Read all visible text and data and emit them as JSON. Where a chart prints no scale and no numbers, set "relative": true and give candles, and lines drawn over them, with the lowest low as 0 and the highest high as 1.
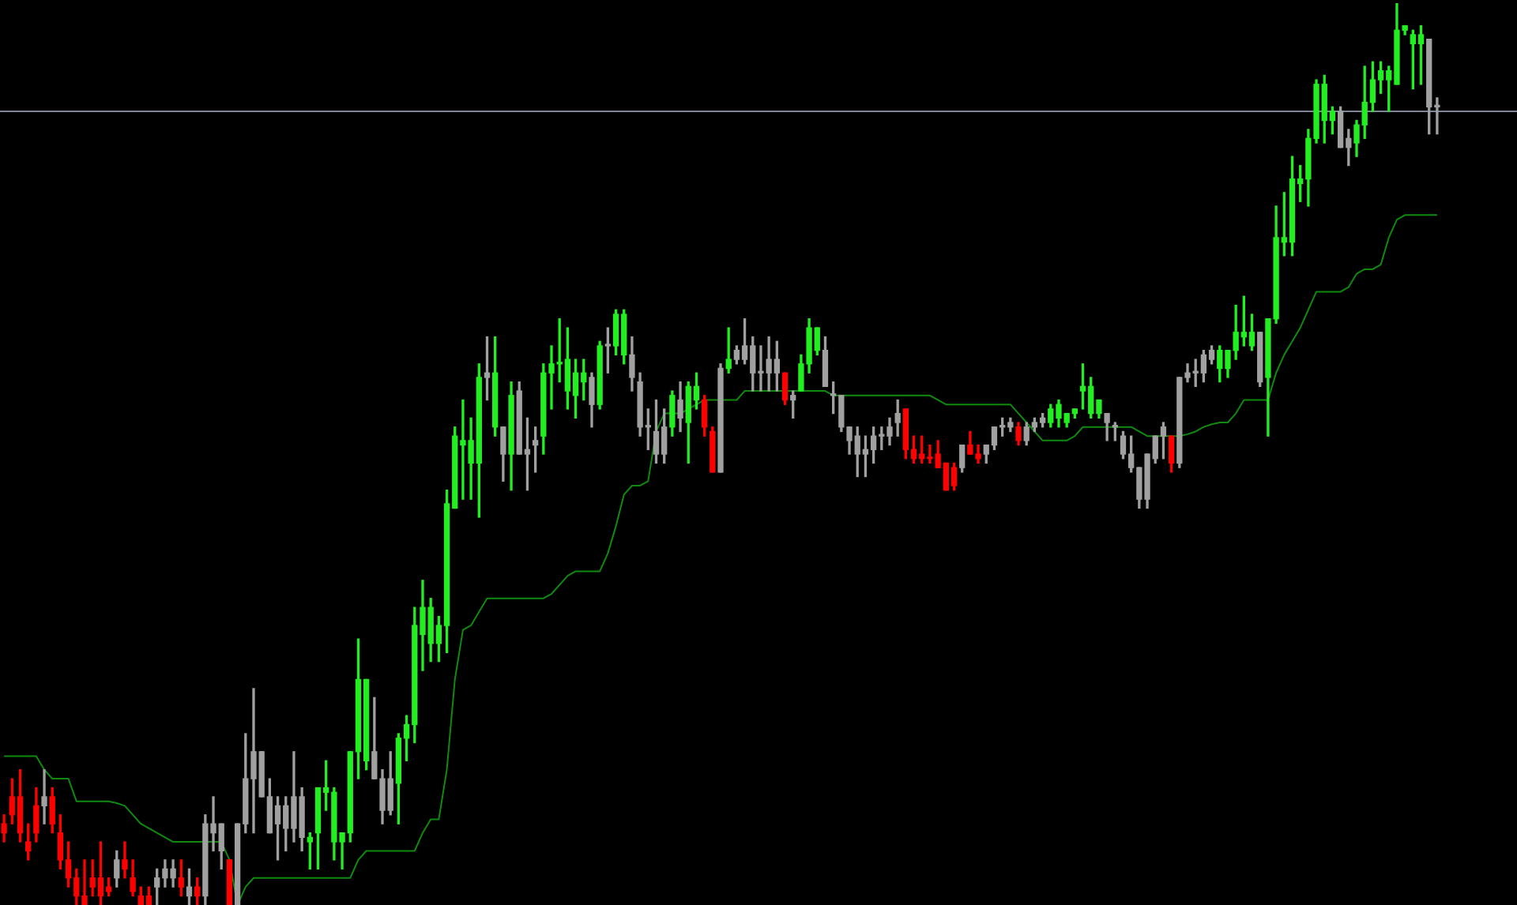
{
  "chart_data": {
    "type": "candlestick",
    "relative": true,
    "categories": [
      null,
      null,
      null,
      null,
      null,
      null,
      null,
      null,
      null,
      null,
      null,
      null,
      null,
      null,
      null,
      null,
      null,
      null,
      null,
      null,
      null,
      null,
      null,
      null,
      null,
      null,
      null,
      null,
      null,
      null,
      null,
      null,
      null,
      null,
      null,
      null,
      null,
      null,
      null,
      null,
      null,
      null,
      null,
      null,
      null,
      null,
      null,
      null,
      null,
      null,
      null,
      null,
      null,
      null,
      null,
      null,
      null,
      null,
      null,
      null,
      null,
      null,
      null,
      null,
      null,
      null,
      null,
      null,
      null,
      null,
      null,
      null,
      null,
      null,
      null,
      null,
      null,
      null,
      null,
      null,
      null,
      null,
      null,
      null,
      null,
      null,
      null,
      null,
      null,
      null,
      null,
      null,
      null,
      null,
      null,
      null,
      null,
      null,
      null,
      null,
      null,
      null,
      null,
      null,
      null,
      null,
      null,
      null,
      null,
      null,
      null,
      null,
      null,
      null,
      null,
      null,
      null,
      null,
      null,
      null,
      null,
      null,
      null,
      null,
      null,
      null,
      null,
      null,
      null,
      null,
      null,
      null,
      null,
      null,
      null,
      null,
      null,
      null,
      null,
      null,
      null,
      null,
      null,
      null,
      null,
      null,
      null,
      null,
      null,
      null,
      null,
      null,
      null,
      null,
      null,
      null,
      null,
      null,
      null,
      null,
      null,
      null,
      null,
      null,
      null,
      null,
      null,
      null,
      null,
      null,
      null,
      null,
      null,
      null,
      null,
      null,
      null,
      null,
      null
    ],
    "ohlc": [
      [
        0.09,
        0.1,
        0.07,
        0.08
      ],
      [
        0.12,
        0.14,
        0.09,
        0.1
      ],
      [
        0.12,
        0.15,
        0.07,
        0.08
      ],
      [
        0.07,
        0.09,
        0.05,
        0.06
      ],
      [
        0.11,
        0.13,
        0.07,
        0.08
      ],
      [
        0.11,
        0.15,
        0.09,
        0.12
      ],
      [
        0.12,
        0.13,
        0.08,
        0.09
      ],
      [
        0.08,
        0.1,
        0.04,
        0.05
      ],
      [
        0.05,
        0.07,
        0.02,
        0.03
      ],
      [
        0.03,
        0.04,
        0,
        0.01
      ],
      [
        0.01,
        0.05,
        0,
        0
      ],
      [
        0.03,
        0.05,
        0.01,
        0.02
      ],
      [
        0.03,
        0.07,
        0,
        0.01
      ],
      [
        0.02,
        0.03,
        0.01,
        0.015
      ],
      [
        0.03,
        0.06,
        0.02,
        0.05
      ],
      [
        0.05,
        0.07,
        0.03,
        0.04
      ],
      [
        0.03,
        0.05,
        0.01,
        0.015
      ],
      [
        0.01,
        0.02,
        0,
        0
      ],
      [
        0.01,
        0.02,
        0,
        0
      ],
      [
        0.02,
        0.04,
        0,
        0.03
      ],
      [
        0.03,
        0.05,
        0.02,
        0.04
      ],
      [
        0.03,
        0.05,
        0.02,
        0.04
      ],
      [
        0.03,
        0.05,
        0.01,
        0.02
      ],
      [
        0.01,
        0.04,
        0,
        0.02
      ],
      [
        0.02,
        0.03,
        0,
        0.01
      ],
      [
        0.01,
        0.1,
        0,
        0.09
      ],
      [
        0.08,
        0.12,
        0.06,
        0.09
      ],
      [
        0.09,
        0.09,
        0.04,
        0.06
      ],
      [
        0.05,
        0.05,
        0,
        0
      ],
      [
        0,
        0.09,
        0,
        0.09
      ],
      [
        0.09,
        0.19,
        0.08,
        0.14
      ],
      [
        0.14,
        0.24,
        0.08,
        0.17
      ],
      [
        0.17,
        0.17,
        0.12,
        0.12
      ],
      [
        0.12,
        0.14,
        0.08,
        0.08
      ],
      [
        0.11,
        0.12,
        0.05,
        0.09
      ],
      [
        0.085,
        0.12,
        0.06,
        0.11
      ],
      [
        0.085,
        0.17,
        0.07,
        0.12
      ],
      [
        0.12,
        0.13,
        0.06,
        0.075
      ],
      [
        0.07,
        0.08,
        0.04,
        0.075
      ],
      [
        0.08,
        0.13,
        0.04,
        0.13
      ],
      [
        0.125,
        0.16,
        0.105,
        0.13
      ],
      [
        0.07,
        0.13,
        0.05,
        0.125
      ],
      [
        0.07,
        0.08,
        0.04,
        0.08
      ],
      [
        0.08,
        0.17,
        0.07,
        0.17
      ],
      [
        0.17,
        0.295,
        0.14,
        0.25
      ],
      [
        0.16,
        0.25,
        0.15,
        0.25
      ],
      [
        0.17,
        0.23,
        0.14,
        0.14
      ],
      [
        0.14,
        0.15,
        0.09,
        0.105
      ],
      [
        0.105,
        0.17,
        0.1,
        0.14
      ],
      [
        0.135,
        0.19,
        0.09,
        0.185
      ],
      [
        0.185,
        0.21,
        0.16,
        0.2
      ],
      [
        0.2,
        0.33,
        0.18,
        0.31
      ],
      [
        0.3,
        0.36,
        0.26,
        0.33
      ],
      [
        0.29,
        0.34,
        0.27,
        0.33
      ],
      [
        0.29,
        0.32,
        0.27,
        0.31
      ],
      [
        0.31,
        0.46,
        0.28,
        0.445
      ],
      [
        0.44,
        0.53,
        0.44,
        0.52
      ],
      [
        0.51,
        0.56,
        0.45,
        0.515
      ],
      [
        0.49,
        0.54,
        0.45,
        0.515
      ],
      [
        0.49,
        0.6,
        0.43,
        0.585
      ],
      [
        0.59,
        0.63,
        0.56,
        0.585
      ],
      [
        0.53,
        0.63,
        0.52,
        0.59
      ],
      [
        0.53,
        0.53,
        0.47,
        0.5
      ],
      [
        0.5,
        0.58,
        0.46,
        0.565
      ],
      [
        0.57,
        0.58,
        0.5,
        0.5
      ],
      [
        0.505,
        0.54,
        0.46,
        0.5
      ],
      [
        0.51,
        0.53,
        0.48,
        0.515
      ],
      [
        0.52,
        0.6,
        0.5,
        0.59
      ],
      [
        0.59,
        0.62,
        0.55,
        0.6
      ],
      [
        0.6,
        0.65,
        0.58,
        0.6
      ],
      [
        0.57,
        0.64,
        0.55,
        0.605
      ],
      [
        0.565,
        0.605,
        0.54,
        0.59
      ],
      [
        0.58,
        0.605,
        0.56,
        0.59
      ],
      [
        0.585,
        0.59,
        0.53,
        0.555
      ],
      [
        0.555,
        0.625,
        0.55,
        0.62
      ],
      [
        0.62,
        0.64,
        0.59,
        0.62
      ],
      [
        0.62,
        0.66,
        0.61,
        0.655
      ],
      [
        0.61,
        0.66,
        0.6,
        0.655
      ],
      [
        0.61,
        0.63,
        0.57,
        0.585
      ],
      [
        0.58,
        0.59,
        0.52,
        0.53
      ],
      [
        0.53,
        0.55,
        0.505,
        0.53
      ],
      [
        0.525,
        0.56,
        0.49,
        0.5
      ],
      [
        0.5,
        0.55,
        0.49,
        0.53
      ],
      [
        0.53,
        0.57,
        0.52,
        0.565
      ],
      [
        0.54,
        0.58,
        0.525,
        0.56
      ],
      [
        0.535,
        0.58,
        0.49,
        0.575
      ],
      [
        0.56,
        0.59,
        0.55,
        0.575
      ],
      [
        0.56,
        0.565,
        0.52,
        0.53
      ],
      [
        0.525,
        0.53,
        0.48,
        0.48
      ],
      [
        0.48,
        0.6,
        0.48,
        0.595
      ],
      [
        0.595,
        0.64,
        0.59,
        0.605
      ],
      [
        0.605,
        0.62,
        0.6,
        0.615
      ],
      [
        0.605,
        0.65,
        0.6,
        0.62
      ],
      [
        0.62,
        0.63,
        0.57,
        0.59
      ],
      [
        0.59,
        0.62,
        0.57,
        0.59
      ],
      [
        0.59,
        0.63,
        0.57,
        0.605
      ],
      [
        0.605,
        0.625,
        0.57,
        0.59
      ],
      [
        0.59,
        0.59,
        0.555,
        0.56
      ],
      [
        0.56,
        0.57,
        0.54,
        0.565
      ],
      [
        0.57,
        0.61,
        0.57,
        0.6
      ],
      [
        0.6,
        0.65,
        0.59,
        0.64
      ],
      [
        0.615,
        0.64,
        0.61,
        0.64
      ],
      [
        0.615,
        0.63,
        0.575,
        0.575
      ],
      [
        0.565,
        0.58,
        0.545,
        0.565
      ],
      [
        0.565,
        0.565,
        0.525,
        0.53
      ],
      [
        0.53,
        0.53,
        0.5,
        0.515
      ],
      [
        0.52,
        0.53,
        0.475,
        0.5
      ],
      [
        0.5,
        0.52,
        0.475,
        0.505
      ],
      [
        0.505,
        0.53,
        0.49,
        0.52
      ],
      [
        0.52,
        0.53,
        0.505,
        0.52
      ],
      [
        0.52,
        0.54,
        0.51,
        0.53
      ],
      [
        0.535,
        0.56,
        0.52,
        0.545
      ],
      [
        0.55,
        0.55,
        0.495,
        0.505
      ],
      [
        0.505,
        0.52,
        0.49,
        0.495
      ],
      [
        0.5,
        0.52,
        0.49,
        0.495
      ],
      [
        0.495,
        0.51,
        0.49,
        0.495
      ],
      [
        0.5,
        0.515,
        0.485,
        0.485
      ],
      [
        0.49,
        0.49,
        0.46,
        0.46
      ],
      [
        0.485,
        0.49,
        0.46,
        0.465
      ],
      [
        0.485,
        0.51,
        0.48,
        0.51
      ],
      [
        0.51,
        0.525,
        0.5,
        0.5
      ],
      [
        0.5,
        0.51,
        0.49,
        0.495
      ],
      [
        0.5,
        0.51,
        0.49,
        0.51
      ],
      [
        0.51,
        0.53,
        0.505,
        0.53
      ],
      [
        0.53,
        0.54,
        0.52,
        0.53
      ],
      [
        0.53,
        0.54,
        0.525,
        0.535
      ],
      [
        0.53,
        0.535,
        0.51,
        0.515
      ],
      [
        0.515,
        0.535,
        0.51,
        0.53
      ],
      [
        0.53,
        0.54,
        0.525,
        0.535
      ],
      [
        0.535,
        0.545,
        0.53,
        0.54
      ],
      [
        0.535,
        0.555,
        0.53,
        0.55
      ],
      [
        0.54,
        0.56,
        0.53,
        0.555
      ],
      [
        0.535,
        0.545,
        0.53,
        0.545
      ],
      [
        0.545,
        0.55,
        0.54,
        0.55
      ],
      [
        0.57,
        0.6,
        0.55,
        0.575
      ],
      [
        0.545,
        0.585,
        0.54,
        0.575
      ],
      [
        0.545,
        0.56,
        0.54,
        0.56
      ],
      [
        0.545,
        0.545,
        0.515,
        0.535
      ],
      [
        0.53,
        0.535,
        0.515,
        0.53
      ],
      [
        0.52,
        0.525,
        0.495,
        0.5
      ],
      [
        0.5,
        0.52,
        0.48,
        0.485
      ],
      [
        0.485,
        0.485,
        0.44,
        0.45
      ],
      [
        0.45,
        0.5,
        0.44,
        0.5
      ],
      [
        0.495,
        0.52,
        0.49,
        0.52
      ],
      [
        0.52,
        0.535,
        0.495,
        0.53
      ],
      [
        0.52,
        0.52,
        0.48,
        0.49
      ],
      [
        0.49,
        0.585,
        0.485,
        0.585
      ],
      [
        0.585,
        0.6,
        0.58,
        0.59
      ],
      [
        0.59,
        0.605,
        0.575,
        0.59
      ],
      [
        0.59,
        0.615,
        0.58,
        0.61
      ],
      [
        0.605,
        0.62,
        0.6,
        0.615
      ],
      [
        0.595,
        0.62,
        0.58,
        0.615
      ],
      [
        0.595,
        0.615,
        0.585,
        0.615
      ],
      [
        0.615,
        0.665,
        0.605,
        0.635
      ],
      [
        0.63,
        0.675,
        0.62,
        0.635
      ],
      [
        0.62,
        0.655,
        0.615,
        0.635
      ],
      [
        0.635,
        0.635,
        0.575,
        0.58
      ],
      [
        0.585,
        0.65,
        0.52,
        0.65
      ],
      [
        0.65,
        0.775,
        0.645,
        0.74
      ],
      [
        0.735,
        0.79,
        0.72,
        0.74
      ],
      [
        0.735,
        0.83,
        0.72,
        0.805
      ],
      [
        0.8,
        0.82,
        0.78,
        0.805
      ],
      [
        0.805,
        0.86,
        0.775,
        0.85
      ],
      [
        0.85,
        0.915,
        0.845,
        0.91
      ],
      [
        0.87,
        0.92,
        0.845,
        0.91
      ],
      [
        0.87,
        0.885,
        0.855,
        0.88
      ],
      [
        0.88,
        0.885,
        0.84,
        0.84
      ],
      [
        0.84,
        0.86,
        0.82,
        0.85
      ],
      [
        0.845,
        0.87,
        0.83,
        0.865
      ],
      [
        0.865,
        0.93,
        0.85,
        0.89
      ],
      [
        0.89,
        0.935,
        0.88,
        0.915
      ],
      [
        0.915,
        0.935,
        0.9,
        0.925
      ],
      [
        0.915,
        0.93,
        0.88,
        0.925
      ],
      [
        0.91,
        1,
        0.91,
        0.97
      ],
      [
        0.97,
        0.975,
        0.965,
        0.975
      ],
      [
        0.955,
        0.97,
        0.905,
        0.965
      ],
      [
        0.955,
        0.975,
        0.91,
        0.965
      ],
      [
        0.96,
        0.96,
        0.855,
        0.885
      ],
      [
        0.885,
        0.895,
        0.855,
        0.885
      ]
    ],
    "colors": [
      "#ff0000",
      "#ff0000",
      "#ff0000",
      "#ff0000",
      "#ff0000",
      "#a0a0a0",
      "#ff0000",
      "#ff0000",
      "#ff0000",
      "#ff0000",
      "#ff0000",
      "#ff0000",
      "#ff0000",
      "#ff0000",
      "#a0a0a0",
      "#ff0000",
      "#ff0000",
      "#ff0000",
      "#ff0000",
      "#a0a0a0",
      "#a0a0a0",
      "#a0a0a0",
      "#ff0000",
      "#a0a0a0",
      "#ff0000",
      "#a0a0a0",
      "#a0a0a0",
      "#a0a0a0",
      "#ff0000",
      "#a0a0a0",
      "#a0a0a0",
      "#a0a0a0",
      "#a0a0a0",
      "#a0a0a0",
      "#a0a0a0",
      "#a0a0a0",
      "#a0a0a0",
      "#a0a0a0",
      "#22ee22",
      "#22ee22",
      "#22ee22",
      "#22ee22",
      "#22ee22",
      "#22ee22",
      "#22ee22",
      "#22ee22",
      "#a0a0a0",
      "#a0a0a0",
      "#a0a0a0",
      "#22ee22",
      "#22ee22",
      "#22ee22",
      "#22ee22",
      "#22ee22",
      "#22ee22",
      "#22ee22",
      "#22ee22",
      "#22ee22",
      "#22ee22",
      "#22ee22",
      "#a0a0a0",
      "#22ee22",
      "#a0a0a0",
      "#22ee22",
      "#a0a0a0",
      "#a0a0a0",
      "#a0a0a0",
      "#22ee22",
      "#22ee22",
      "#22ee22",
      "#22ee22",
      "#22ee22",
      "#22ee22",
      "#a0a0a0",
      "#22ee22",
      "#a0a0a0",
      "#22ee22",
      "#22ee22",
      "#a0a0a0",
      "#a0a0a0",
      "#a0a0a0",
      "#a0a0a0",
      "#a0a0a0",
      "#22ee22",
      "#a0a0a0",
      "#22ee22",
      "#22ee22",
      "#ff0000",
      "#ff0000",
      "#a0a0a0",
      "#22ee22",
      "#a0a0a0",
      "#a0a0a0",
      "#a0a0a0",
      "#a0a0a0",
      "#a0a0a0",
      "#a0a0a0",
      "#ff0000",
      "#a0a0a0",
      "#22ee22",
      "#22ee22",
      "#22ee22",
      "#a0a0a0",
      "#a0a0a0",
      "#a0a0a0",
      "#a0a0a0",
      "#a0a0a0",
      "#a0a0a0",
      "#a0a0a0",
      "#a0a0a0",
      "#a0a0a0",
      "#a0a0a0",
      "#ff0000",
      "#ff0000",
      "#ff0000",
      "#ff0000",
      "#ff0000",
      "#ff0000",
      "#ff0000",
      "#a0a0a0",
      "#ff0000",
      "#ff0000",
      "#a0a0a0",
      "#a0a0a0",
      "#a0a0a0",
      "#a0a0a0",
      "#ff0000",
      "#a0a0a0",
      "#a0a0a0",
      "#a0a0a0",
      "#22ee22",
      "#22ee22",
      "#22ee22",
      "#22ee22",
      "#22ee22",
      "#22ee22",
      "#22ee22",
      "#a0a0a0",
      "#a0a0a0",
      "#a0a0a0",
      "#a0a0a0",
      "#a0a0a0",
      "#a0a0a0",
      "#a0a0a0",
      "#a0a0a0",
      "#ff0000",
      "#a0a0a0",
      "#a0a0a0",
      "#a0a0a0",
      "#a0a0a0",
      "#a0a0a0",
      "#22ee22",
      "#22ee22",
      "#22ee22",
      "#22ee22",
      "#22ee22",
      "#a0a0a0",
      "#22ee22",
      "#22ee22",
      "#22ee22",
      "#22ee22",
      "#22ee22",
      "#22ee22",
      "#22ee22",
      "#22ee22",
      "#22ee22",
      "#a0a0a0",
      "#a0a0a0",
      "#22ee22",
      "#22ee22",
      "#22ee22",
      "#22ee22",
      "#22ee22",
      "#22ee22",
      "#22ee22",
      "#22ee22",
      "#22ee22",
      "#a0a0a0",
      "#a0a0a0"
    ],
    "series": [
      {
        "type": "line",
        "color": "#0f8a0f",
        "values": [
          0.165,
          0.165,
          0.165,
          0.165,
          0.165,
          0.15,
          0.14,
          0.14,
          0.14,
          0.115,
          0.115,
          0.115,
          0.115,
          0.115,
          0.113,
          0.11,
          0.1,
          0.09,
          0.085,
          0.08,
          0.075,
          0.07,
          0.07,
          0.07,
          0.07,
          0.07,
          0.07,
          0.07,
          0.05,
          0,
          0.02,
          0.03,
          0.03,
          0.03,
          0.03,
          0.03,
          0.03,
          0.03,
          0.03,
          0.03,
          0.03,
          0.03,
          0.03,
          0.03,
          0.05,
          0.06,
          0.06,
          0.06,
          0.06,
          0.06,
          0.06,
          0.06,
          0.08,
          0.095,
          0.095,
          0.15,
          0.25,
          0.305,
          0.31,
          0.325,
          0.34,
          0.34,
          0.34,
          0.34,
          0.34,
          0.34,
          0.34,
          0.34,
          0.345,
          0.355,
          0.365,
          0.37,
          0.37,
          0.37,
          0.37,
          0.39,
          0.42,
          0.455,
          0.465,
          0.465,
          0.47,
          0.525,
          0.545,
          0.545,
          0.545,
          0.55,
          0.555,
          0.56,
          0.56,
          0.56,
          0.56,
          0.56,
          0.57,
          0.57,
          0.57,
          0.57,
          0.57,
          0.57,
          0.57,
          0.57,
          0.57,
          0.57,
          0.57,
          0.565,
          0.565,
          0.565,
          0.565,
          0.565,
          0.565,
          0.565,
          0.565,
          0.565,
          0.565,
          0.565,
          0.565,
          0.565,
          0.56,
          0.555,
          0.555,
          0.555,
          0.555,
          0.555,
          0.555,
          0.555,
          0.555,
          0.555,
          0.545,
          0.535,
          0.525,
          0.515,
          0.515,
          0.515,
          0.515,
          0.52,
          0.53,
          0.53,
          0.53,
          0.53,
          0.53,
          0.53,
          0.53,
          0.525,
          0.52,
          0.52,
          0.52,
          0.52,
          0.52,
          0.522,
          0.525,
          0.53,
          0.533,
          0.535,
          0.535,
          0.545,
          0.56,
          0.56,
          0.56,
          0.56,
          0.59,
          0.61,
          0.625,
          0.64,
          0.66,
          0.68,
          0.68,
          0.68,
          0.68,
          0.685,
          0.7,
          0.705,
          0.705,
          0.71,
          0.74,
          0.76,
          0.765,
          0.765,
          0.765,
          0.765,
          0.765
        ]
      }
    ],
    "ref_lines": [
      {
        "axis": "y",
        "value": 0.88,
        "color": "#7d8596"
      }
    ]
  }
}
